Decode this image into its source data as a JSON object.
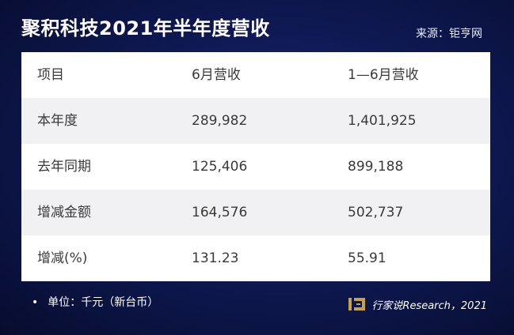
{
  "title": "聚积科技2021年半年度营收",
  "source": "来源：钜亨网",
  "table": {
    "headers": [
      "项目",
      "6月营收",
      "1—6月营收"
    ],
    "rows": [
      [
        "本年度",
        "289,982",
        "1,401,925"
      ],
      [
        "去年同期",
        "125,406",
        "899,188"
      ],
      [
        "增减金额",
        "164,576",
        "502,737"
      ],
      [
        "增减(%)",
        "131.23",
        "55.91"
      ]
    ]
  },
  "footnote": {
    "bullet": "•",
    "text": "单位：千元（新台币）"
  },
  "brand": {
    "logo_icon": "hangjiashuo-logo-icon",
    "text": "行家说Research，2021",
    "logo_color": "#c8a04a"
  }
}
